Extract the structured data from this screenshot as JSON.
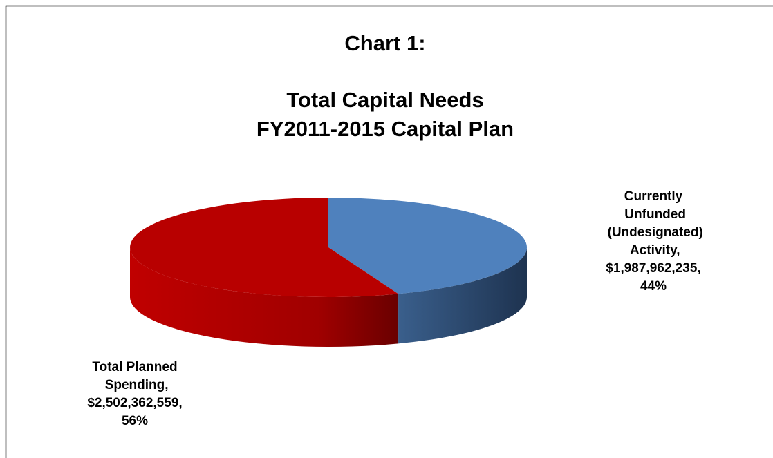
{
  "chart_data": {
    "type": "pie",
    "title": "Chart 1:",
    "subtitle": [
      "Total Capital Needs",
      "FY2011-2015 Capital Plan"
    ],
    "categories": [
      "Currently Unfunded (Undesignated) Activity",
      "Total Planned Spending"
    ],
    "values": [
      1987962235,
      2502362559
    ],
    "value_labels": [
      "$1,987,962,235",
      "$2,502,362,559"
    ],
    "percents": [
      44,
      56
    ],
    "percent_labels": [
      "44%",
      "56%"
    ],
    "label_separator": ",",
    "colors": [
      "#4f81bd",
      "#b80000"
    ],
    "three_d": true
  }
}
